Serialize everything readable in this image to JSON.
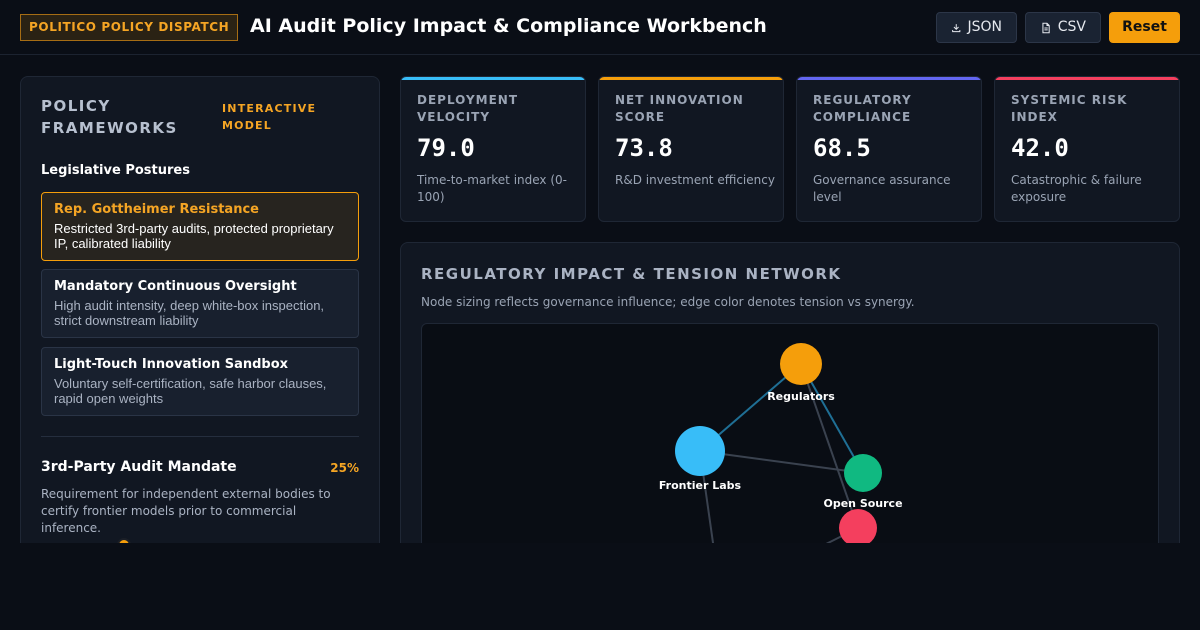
{
  "header": {
    "badge": "POLITICO POLICY DISPATCH",
    "title": "AI Audit Policy Impact & Compliance Workbench",
    "buttons": {
      "json": "JSON",
      "csv": "CSV",
      "reset": "Reset"
    }
  },
  "sidebar": {
    "heading": "POLICY FRAMEWORKS",
    "tag": "INTERACTIVE MODEL",
    "subheading": "Legislative Postures",
    "postures": [
      {
        "title": "Rep. Gottheimer Resistance",
        "desc": "Restricted 3rd-party audits, protected proprietary IP, calibrated liability",
        "active": true
      },
      {
        "title": "Mandatory Continuous Oversight",
        "desc": "High audit intensity, deep white-box inspection, strict downstream liability",
        "active": false
      },
      {
        "title": "Light-Touch Innovation Sandbox",
        "desc": "Voluntary self-certification, safe harbor clauses, rapid open weights",
        "active": false
      }
    ],
    "audit": {
      "label": "3rd-Party Audit Mandate",
      "value": "25%",
      "level": 0.25,
      "desc": "Requirement for independent external bodies to certify frontier models prior to commercial inference."
    }
  },
  "metrics": [
    {
      "label": "DEPLOYMENT VELOCITY",
      "value": "79.0",
      "note": "Time-to-market index (0-100)",
      "color": "#38bdf8"
    },
    {
      "label": "NET INNOVATION SCORE",
      "value": "73.8",
      "note": "R&D investment efficiency",
      "color": "#f59e0b"
    },
    {
      "label": "REGULATORY COMPLIANCE",
      "value": "68.5",
      "note": "Governance assurance level",
      "color": "#6366f1"
    },
    {
      "label": "SYSTEMIC RISK INDEX",
      "value": "42.0",
      "note": "Catastrophic & failure exposure",
      "color": "#f43f5e"
    }
  ],
  "network": {
    "title": "REGULATORY IMPACT & TENSION NETWORK",
    "subtitle": "Node sizing reflects governance influence; edge color denotes tension vs synergy.",
    "nodes": [
      {
        "id": "regulators",
        "label": "Regulators",
        "color": "#f59e0b"
      },
      {
        "id": "labs",
        "label": "Frontier Labs",
        "color": "#38bdf8"
      },
      {
        "id": "opensource",
        "label": "Open Source",
        "color": "#10b981"
      },
      {
        "id": "risk",
        "label": "",
        "color": "#f43f5e"
      }
    ],
    "edge_colors": {
      "synergy": "#1f6f95",
      "tension": "#3a424f"
    }
  }
}
